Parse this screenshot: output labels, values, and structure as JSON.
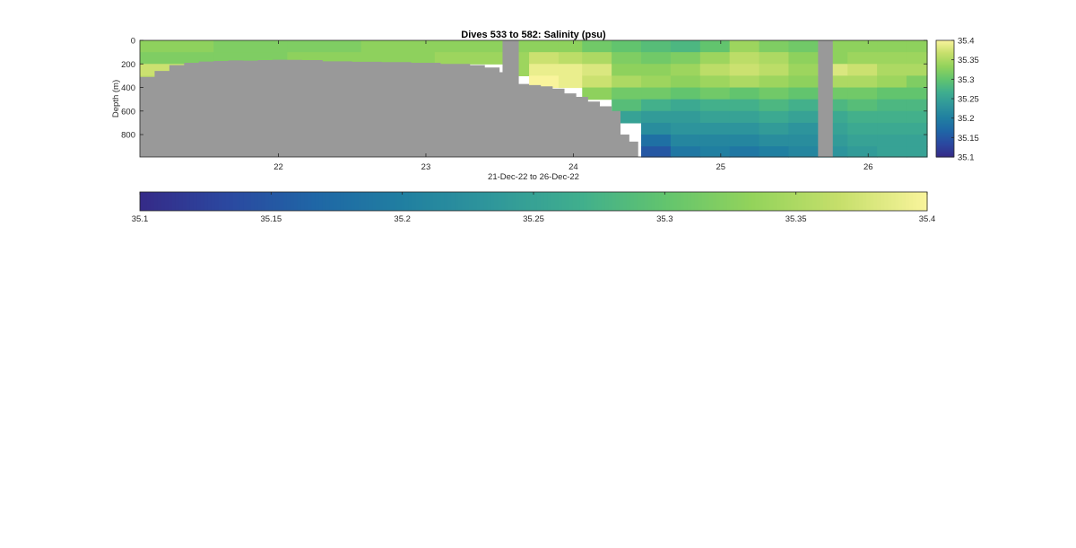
{
  "chart_data": {
    "type": "heatmap",
    "title": "Dives 533 to 582: Salinity (psu)",
    "xlabel": "21-Dec-22 to 26-Dec-22",
    "ylabel": "Depth (m)",
    "xlim": [
      21.06,
      26.4
    ],
    "ylim": [
      0,
      990
    ],
    "y_reversed": true,
    "x_ticks": [
      22,
      23,
      24,
      25,
      26
    ],
    "x_tick_labels": [
      "22",
      "23",
      "24",
      "25",
      "26"
    ],
    "y_ticks": [
      0,
      200,
      400,
      600,
      800
    ],
    "y_tick_labels": [
      "0",
      "200",
      "400",
      "600",
      "800"
    ],
    "colormap": [
      "#352a87",
      "#2b48a0",
      "#1f66a6",
      "#207fa1",
      "#2f969b",
      "#3fae8e",
      "#62c46e",
      "#93d35b",
      "#c6df6b",
      "#f9f49c"
    ],
    "missing_color": "#999999",
    "color_limits": [
      35.1,
      35.4
    ],
    "colorbar_right": {
      "ticks": [
        35.4,
        35.35,
        35.3,
        35.25,
        35.2,
        35.15,
        35.1
      ],
      "tick_labels": [
        "35.4",
        "35.35",
        "35.3",
        "35.25",
        "35.2",
        "35.15",
        "35.1"
      ]
    },
    "colorbar_bottom": {
      "ticks": [
        35.1,
        35.15,
        35.2,
        35.25,
        35.3,
        35.35,
        35.4
      ],
      "tick_labels": [
        "35.1",
        "35.15",
        "35.2",
        "35.25",
        "35.3",
        "35.35",
        "35.4"
      ]
    },
    "seafloor_depth": {
      "x": [
        21.06,
        21.16,
        21.26,
        21.36,
        21.46,
        21.56,
        21.66,
        21.76,
        21.86,
        21.96,
        22.06,
        22.16,
        22.3,
        22.5,
        22.7,
        22.9,
        23.1,
        23.3,
        23.4,
        23.5,
        23.6,
        23.7,
        23.78,
        23.86,
        23.94,
        24.02,
        24.1,
        24.18,
        24.26,
        24.32,
        24.38
      ],
      "depth": [
        310,
        260,
        210,
        190,
        180,
        175,
        170,
        172,
        168,
        165,
        166,
        168,
        178,
        182,
        185,
        190,
        200,
        210,
        230,
        270,
        370,
        380,
        390,
        410,
        450,
        480,
        520,
        560,
        600,
        800,
        860
      ]
    },
    "gap_columns": [
      [
        23.52,
        23.63
      ],
      [
        25.66,
        25.76
      ]
    ],
    "profile_columns": {
      "x": [
        21.06,
        21.56,
        22.06,
        22.56,
        23.06,
        23.56,
        23.7,
        23.9,
        24.06,
        24.26,
        24.46,
        24.66,
        24.86,
        25.06,
        25.26,
        25.46,
        25.66,
        25.86,
        26.06,
        26.26
      ],
      "depth": [
        0,
        100,
        200,
        300,
        400,
        500,
        600,
        700,
        800,
        900
      ],
      "salinity": [
        [
          35.33,
          35.32,
          35.37,
          35.36,
          null,
          null,
          null,
          null,
          null,
          null
        ],
        [
          35.32,
          35.32,
          35.35,
          null,
          null,
          null,
          null,
          null,
          null,
          null
        ],
        [
          35.32,
          35.33,
          null,
          null,
          null,
          null,
          null,
          null,
          null,
          null
        ],
        [
          35.33,
          35.33,
          null,
          null,
          null,
          null,
          null,
          null,
          null,
          null
        ],
        [
          35.33,
          35.34,
          null,
          null,
          null,
          null,
          null,
          null,
          null,
          null
        ],
        [
          35.33,
          35.34,
          35.34,
          null,
          null,
          null,
          null,
          null,
          null,
          null
        ],
        [
          35.33,
          35.37,
          35.39,
          35.4,
          null,
          null,
          null,
          null,
          null,
          null
        ],
        [
          35.33,
          35.36,
          35.39,
          35.39,
          null,
          null,
          null,
          null,
          null,
          null
        ],
        [
          35.31,
          35.35,
          35.38,
          35.37,
          35.33,
          null,
          null,
          null,
          null,
          null
        ],
        [
          35.3,
          35.32,
          35.33,
          35.35,
          35.31,
          35.29,
          35.25,
          null,
          null,
          null
        ],
        [
          35.29,
          35.31,
          35.33,
          35.34,
          35.31,
          35.27,
          35.24,
          35.22,
          35.18,
          35.15
        ],
        [
          35.28,
          35.32,
          35.34,
          35.33,
          35.3,
          35.26,
          35.24,
          35.23,
          35.21,
          35.19
        ],
        [
          35.3,
          35.34,
          35.36,
          35.34,
          35.31,
          35.27,
          35.25,
          35.23,
          35.21,
          35.2
        ],
        [
          35.34,
          35.36,
          35.37,
          35.35,
          35.3,
          35.27,
          35.25,
          35.23,
          35.21,
          35.19
        ],
        [
          35.32,
          35.35,
          35.36,
          35.34,
          35.31,
          35.28,
          35.26,
          35.24,
          35.22,
          35.2
        ],
        [
          35.31,
          35.33,
          35.34,
          35.33,
          35.3,
          35.27,
          35.25,
          35.23,
          35.22,
          35.21
        ],
        [
          35.33,
          35.33,
          35.38,
          35.35,
          35.31,
          35.28,
          35.26,
          35.25,
          35.24,
          35.23
        ],
        [
          35.33,
          35.34,
          35.37,
          35.35,
          35.31,
          35.29,
          35.27,
          35.26,
          35.25,
          35.24
        ],
        [
          35.33,
          35.34,
          35.35,
          35.34,
          35.3,
          35.28,
          35.27,
          35.26,
          35.25,
          35.25
        ],
        [
          35.33,
          35.34,
          35.35,
          35.32,
          35.3,
          35.28,
          35.27,
          35.26,
          35.25,
          35.25
        ]
      ]
    }
  }
}
